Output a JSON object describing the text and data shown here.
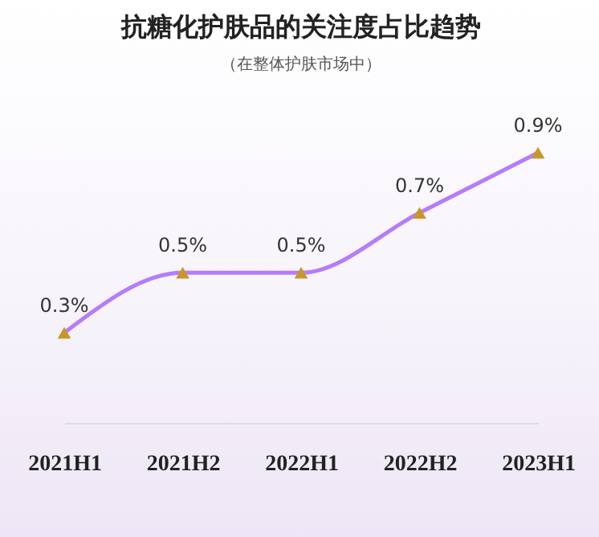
{
  "chart_data": {
    "type": "line",
    "title": "抗糖化护肤品的关注度占比趋势",
    "subtitle": "（在整体护肤市场中）",
    "categories": [
      "2021H1",
      "2021H2",
      "2022H1",
      "2022H2",
      "2023H1"
    ],
    "series": [
      {
        "color": "#b57cfb",
        "values": [
          0.3,
          0.5,
          0.5,
          0.7,
          0.9
        ],
        "value_labels": [
          "0.3%",
          "0.5%",
          "0.5%",
          "0.7%",
          "0.9%"
        ]
      }
    ],
    "marker": "triangle",
    "grid": false
  }
}
